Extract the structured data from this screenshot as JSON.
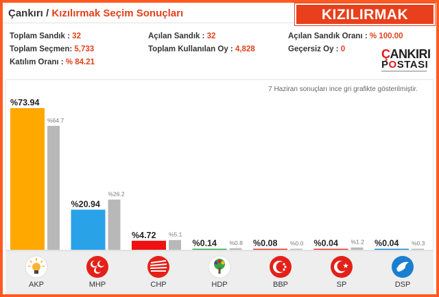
{
  "header": {
    "province": "Çankırı",
    "separator": " / ",
    "district_title": "Kızılırmak Seçim Sonuçları",
    "badge": "KIZILIRMAK"
  },
  "stats": {
    "toplam_sandik_label": "Toplam Sandık : ",
    "toplam_sandik_value": "32",
    "acilan_sandik_label": "Açılan Sandık : ",
    "acilan_sandik_value": "32",
    "acilan_oran_label": "Açılan Sandık Oranı : ",
    "acilan_oran_value": "% 100.00",
    "toplam_secmen_label": "Toplam Seçmen: ",
    "toplam_secmen_value": "5,733",
    "kullanilan_oy_label": "Toplam Kullanılan Oy : ",
    "kullanilan_oy_value": "4,828",
    "gecersiz_label": "Geçersiz Oy : ",
    "gecersiz_value": "0",
    "katilim_label": "Katılım Oranı : ",
    "katilim_value": "% 84.21"
  },
  "logo": {
    "line1_c": "Ç",
    "line1_rest": "ANKIRI",
    "line2_p": "P",
    "line2_o": "O",
    "line2_rest": "STASI"
  },
  "note": "7 Haziran sonuçları ince gri grafikte gösterilmiştir.",
  "chart_data": {
    "type": "bar",
    "categories": [
      "AKP",
      "MHP",
      "CHP",
      "HDP",
      "BBP",
      "SP",
      "DSP"
    ],
    "series": [
      {
        "values": [
          73.94,
          20.94,
          4.72,
          0.14,
          0.08,
          0.04,
          0.04
        ],
        "labels": [
          "%73.94",
          "%20.94",
          "%4.72",
          "%0.14",
          "%0.08",
          "%0.04",
          "%0.04"
        ]
      },
      {
        "values": [
          64.7,
          26.2,
          5.1,
          0.8,
          0.0,
          1.2,
          0.3
        ],
        "labels": [
          "%64.7",
          "%26.2",
          "%5.1",
          "%0.8",
          "%0.0",
          "%1.2",
          "%0.3"
        ]
      }
    ],
    "colors": [
      "#ffa800",
      "#2aa2e8",
      "#ee1111",
      "#2fa84a",
      "#e8302a",
      "#e8302a",
      "#1a88d8"
    ],
    "previous_color": "#b8b8b8",
    "ylim": [
      0,
      80
    ],
    "grid": false
  },
  "parties": [
    {
      "name": "AKP",
      "icon": "akp-bulb-icon",
      "color": "#ffffff"
    },
    {
      "name": "MHP",
      "icon": "mhp-crescents-icon",
      "color": "#e32119"
    },
    {
      "name": "CHP",
      "icon": "chp-arrows-icon",
      "color": "#e32119"
    },
    {
      "name": "HDP",
      "icon": "hdp-tree-icon",
      "color": "#ffffff"
    },
    {
      "name": "BBP",
      "icon": "bbp-crescent-icon",
      "color": "#e32119"
    },
    {
      "name": "SP",
      "icon": "sp-crescent-icon",
      "color": "#e32119"
    },
    {
      "name": "DSP",
      "icon": "dsp-dove-icon",
      "color": "#1a7fd0"
    }
  ]
}
